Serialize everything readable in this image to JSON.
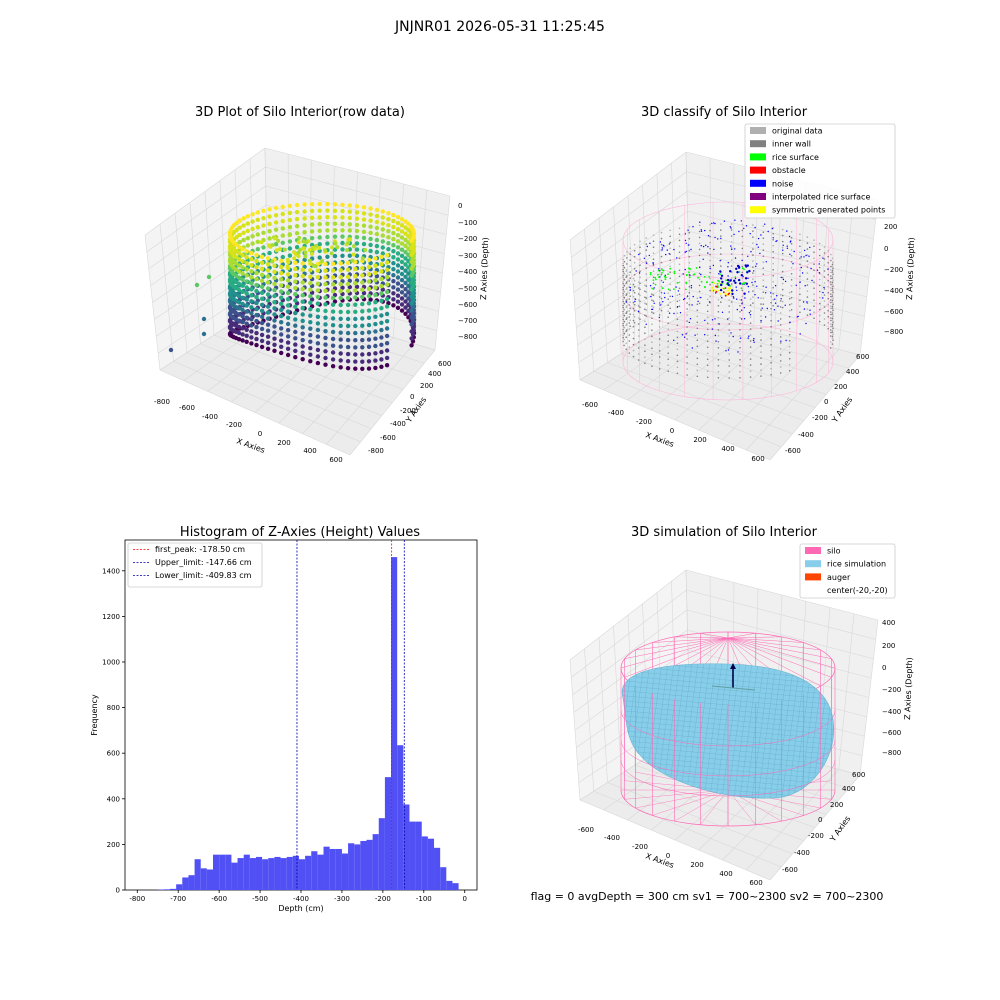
{
  "figure": {
    "suptitle": "JNJNR01 2026-05-31 11:25:45",
    "footer": "flag = 0     avgDepth = 300 cm  sv1 = 700~2300  sv2 = 700~2300"
  },
  "panels": {
    "raw": {
      "title": "3D Plot of Silo Interior(row data)",
      "xlabel": "X Axies",
      "ylabel": "Y Axies",
      "zlabel": "Z Axies (Depth)",
      "xticks": [
        "-800",
        "-600",
        "-400",
        "-200",
        "0",
        "200",
        "400",
        "600"
      ],
      "yticks": [
        "-800",
        "-600",
        "-400",
        "-200",
        "0",
        "200",
        "400",
        "600"
      ],
      "zticks": [
        "0",
        "−100",
        "−200",
        "−300",
        "−400",
        "−500",
        "−600",
        "−700",
        "−800"
      ]
    },
    "classify": {
      "title": "3D classify of Silo Interior",
      "xlabel": "X Axies",
      "ylabel": "Y Axies",
      "zlabel": "Z Axies (Depth)",
      "xticks": [
        "-600",
        "-400",
        "-200",
        "0",
        "200",
        "400",
        "600"
      ],
      "yticks": [
        "-600",
        "-400",
        "-200",
        "0",
        "200",
        "400",
        "600"
      ],
      "zticks": [
        "200",
        "0",
        "−200",
        "−400",
        "−600",
        "−800"
      ],
      "legend": [
        {
          "label": "original data",
          "color": "#b0b0b0"
        },
        {
          "label": "inner wall",
          "color": "#808080"
        },
        {
          "label": "rice surface",
          "color": "#00ff00"
        },
        {
          "label": "obstacle",
          "color": "#ff0000"
        },
        {
          "label": "noise",
          "color": "#0000ff"
        },
        {
          "label": "interpolated rice surface",
          "color": "#800080"
        },
        {
          "label": "symmetric generated points",
          "color": "#ffff00"
        }
      ]
    },
    "simulation": {
      "title": "3D simulation of Silo Interior",
      "xlabel": "X Axies",
      "ylabel": "Y Axies",
      "zlabel": "Z Axies (Depth)",
      "xticks": [
        "-600",
        "-400",
        "-200",
        "0",
        "200",
        "400",
        "600"
      ],
      "yticks": [
        "-600",
        "-400",
        "-200",
        "0",
        "200",
        "400",
        "600"
      ],
      "zticks": [
        "400",
        "200",
        "0",
        "−200",
        "−400",
        "−600",
        "−800"
      ],
      "legend": [
        {
          "label": "silo",
          "color": "#ff69b4"
        },
        {
          "label": "rice simulation",
          "color": "#87ceeb"
        },
        {
          "label": "auger",
          "color": "#ff4500"
        },
        {
          "label": "center(-20,-20)",
          "color": ""
        }
      ]
    }
  },
  "chart_data": {
    "type": "bar",
    "title": "Histogram of Z-Axies (Height) Values",
    "xlabel": "Depth (cm)",
    "ylabel": "Frequency",
    "xlim": [
      -830,
      30
    ],
    "ylim": [
      0,
      1535
    ],
    "xticks": [
      -800,
      -700,
      -600,
      -500,
      -400,
      -300,
      -200,
      -100,
      0
    ],
    "yticks": [
      0,
      200,
      400,
      600,
      800,
      1000,
      1200,
      1400
    ],
    "bar_color": "#5050f5",
    "bin_start": -750,
    "bin_width": 15,
    "values": [
      2,
      3,
      5,
      25,
      55,
      65,
      135,
      95,
      90,
      155,
      155,
      155,
      120,
      140,
      155,
      140,
      145,
      135,
      140,
      145,
      140,
      145,
      150,
      135,
      150,
      170,
      155,
      190,
      180,
      180,
      160,
      205,
      200,
      215,
      220,
      245,
      315,
      495,
      1460,
      635,
      375,
      300,
      300,
      235,
      225,
      185,
      100,
      40,
      30
    ],
    "legend_position": "upper left",
    "vlines": [
      {
        "label": "first_peak: -178.50 cm",
        "x": -178.5,
        "color": "#ff0000"
      },
      {
        "label": "Upper_limit: -147.66 cm",
        "x": -147.66,
        "color": "#0000aa"
      },
      {
        "label": "Lower_limit: -409.83 cm",
        "x": -409.83,
        "color": "#0000aa"
      }
    ]
  }
}
